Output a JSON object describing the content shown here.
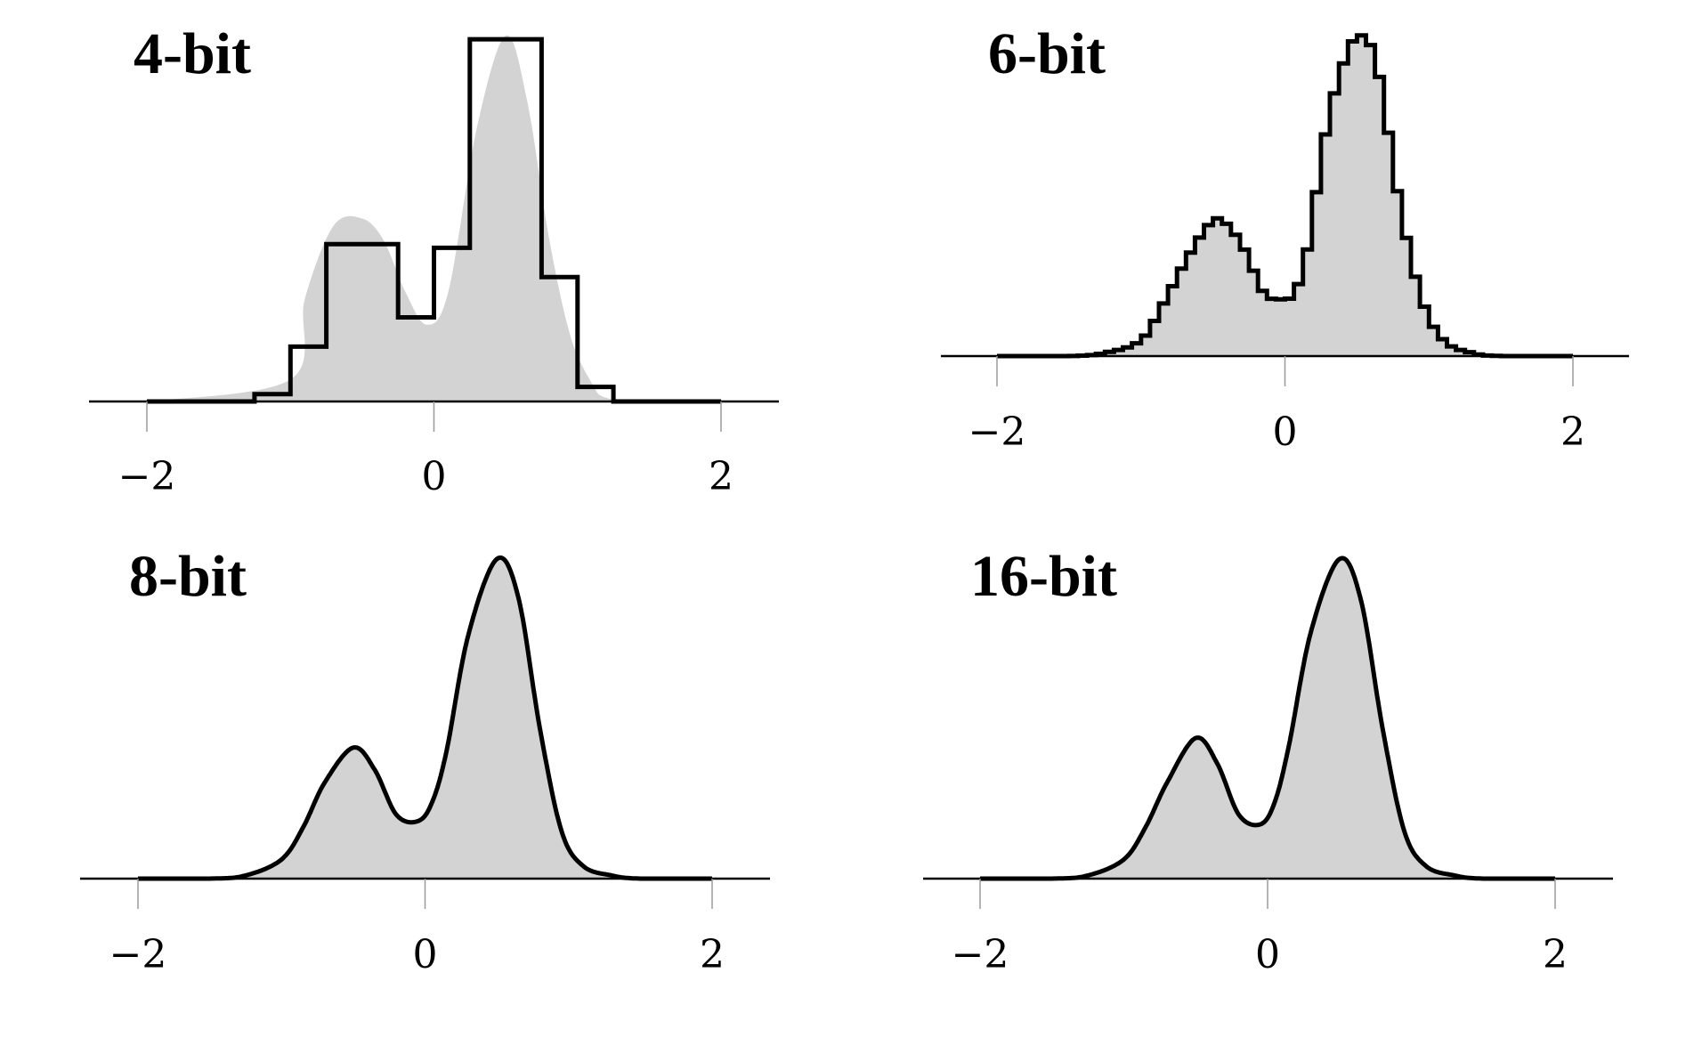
{
  "colors": {
    "density_fill": "#d3d3d3",
    "outline": "#000000",
    "axis": "#000000",
    "tick": "#9a9a9a"
  },
  "chart_data": [
    {
      "type": "area",
      "title": "4-bit",
      "xlabel": "",
      "ylabel": "",
      "xlim": [
        -2.2,
        2.4
      ],
      "xticks": [
        -2,
        0,
        2
      ],
      "xtick_labels": [
        "−2",
        "0",
        "2"
      ],
      "yaxis_visible": false,
      "grid": false,
      "legend": "none",
      "series": [
        {
          "kind": "filled-density",
          "x": [
            -2.0,
            -1.0,
            -0.9,
            -0.7,
            -0.5,
            -0.35,
            -0.2,
            -0.05,
            0.1,
            0.3,
            0.5,
            0.65,
            0.8,
            0.95,
            1.1,
            1.2,
            1.5,
            2.0
          ],
          "y": [
            0.0,
            0.06,
            0.28,
            0.48,
            0.5,
            0.44,
            0.3,
            0.21,
            0.3,
            0.75,
            1.0,
            0.82,
            0.45,
            0.18,
            0.05,
            0.01,
            0.0,
            0.0
          ]
        },
        {
          "kind": "step",
          "bin_edges": [
            -2.0,
            -1.25,
            -1.0,
            -0.75,
            -0.25,
            0.0,
            0.25,
            0.75,
            1.0,
            1.25,
            2.0
          ],
          "values": [
            0.0,
            0.02,
            0.15,
            0.43,
            0.23,
            0.42,
            0.99,
            0.34,
            0.04,
            0.0
          ]
        }
      ]
    },
    {
      "type": "area",
      "title": "6-bit",
      "xlabel": "",
      "ylabel": "",
      "xlim": [
        -2.4,
        2.4
      ],
      "xticks": [
        -2,
        0,
        2
      ],
      "xtick_labels": [
        "−2",
        "0",
        "2"
      ],
      "yaxis_visible": false,
      "grid": false,
      "legend": "none",
      "series": [
        {
          "kind": "step-density",
          "bin_width": 0.0625,
          "x": [
            -2.0,
            -1.5,
            -1.25,
            -1.0,
            -0.85,
            -0.7,
            -0.55,
            -0.45,
            -0.3,
            -0.15,
            -0.05,
            0.05,
            0.15,
            0.3,
            0.45,
            0.55,
            0.65,
            0.8,
            0.95,
            1.1,
            1.3,
            1.5,
            2.0
          ],
          "y": [
            0.0,
            0.0,
            0.01,
            0.05,
            0.16,
            0.29,
            0.4,
            0.43,
            0.35,
            0.2,
            0.18,
            0.19,
            0.32,
            0.74,
            0.97,
            1.0,
            0.89,
            0.47,
            0.18,
            0.05,
            0.01,
            0.0,
            0.0
          ]
        }
      ]
    },
    {
      "type": "area",
      "title": "8-bit",
      "xlabel": "",
      "ylabel": "",
      "xlim": [
        -2.4,
        2.4
      ],
      "xticks": [
        -2,
        0,
        2
      ],
      "xtick_labels": [
        "−2",
        "0",
        "2"
      ],
      "yaxis_visible": false,
      "grid": false,
      "legend": "none",
      "series": [
        {
          "kind": "filled-density",
          "x": [
            -2.0,
            -1.5,
            -1.25,
            -1.0,
            -0.85,
            -0.7,
            -0.5,
            -0.35,
            -0.2,
            -0.05,
            0.05,
            0.15,
            0.3,
            0.5,
            0.65,
            0.8,
            0.95,
            1.1,
            1.3,
            1.5,
            2.0
          ],
          "y": [
            0.0,
            0.0,
            0.01,
            0.06,
            0.16,
            0.3,
            0.41,
            0.34,
            0.2,
            0.18,
            0.24,
            0.4,
            0.76,
            1.0,
            0.88,
            0.47,
            0.15,
            0.04,
            0.01,
            0.0,
            0.0
          ]
        }
      ]
    },
    {
      "type": "area",
      "title": "16-bit",
      "xlabel": "",
      "ylabel": "",
      "xlim": [
        -2.4,
        2.4
      ],
      "xticks": [
        -2,
        0,
        2
      ],
      "xtick_labels": [
        "−2",
        "0",
        "2"
      ],
      "yaxis_visible": false,
      "grid": false,
      "legend": "none",
      "series": [
        {
          "kind": "filled-density",
          "x": [
            -2.0,
            -1.5,
            -1.25,
            -1.0,
            -0.85,
            -0.7,
            -0.5,
            -0.35,
            -0.2,
            -0.05,
            0.05,
            0.15,
            0.3,
            0.5,
            0.65,
            0.8,
            0.95,
            1.1,
            1.3,
            1.5,
            2.0
          ],
          "y": [
            0.0,
            0.0,
            0.01,
            0.06,
            0.16,
            0.3,
            0.44,
            0.36,
            0.2,
            0.17,
            0.24,
            0.42,
            0.77,
            1.0,
            0.87,
            0.47,
            0.15,
            0.04,
            0.01,
            0.0,
            0.0
          ]
        }
      ]
    }
  ]
}
